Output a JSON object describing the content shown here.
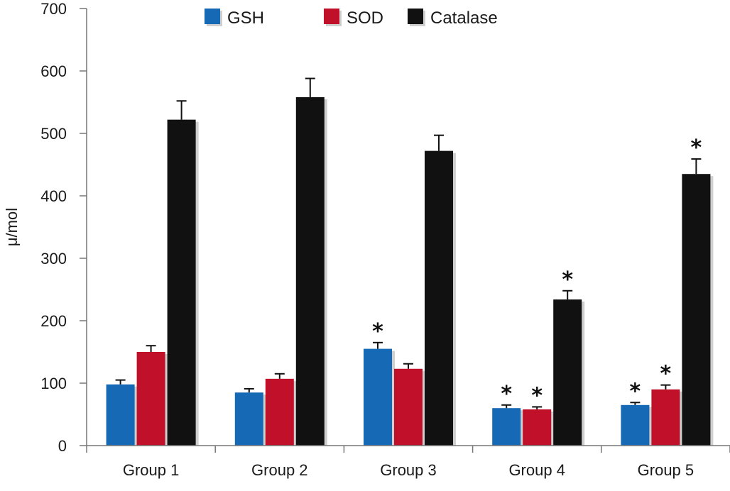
{
  "chart_data": {
    "type": "bar",
    "ylabel": "μ/mol",
    "ylim": [
      0,
      700
    ],
    "yticks": [
      0,
      100,
      200,
      300,
      400,
      500,
      600,
      700
    ],
    "categories": [
      "Group 1",
      "Group 2",
      "Group 3",
      "Group 4",
      "Group 5"
    ],
    "legend_position": "top",
    "series": [
      {
        "name": "GSH",
        "color": "#1569b5",
        "values": [
          98,
          85,
          155,
          60,
          65
        ],
        "errors": [
          7,
          6,
          10,
          5,
          4
        ],
        "significant": [
          false,
          false,
          true,
          true,
          true
        ]
      },
      {
        "name": "SOD",
        "color": "#c0102a",
        "values": [
          150,
          107,
          123,
          58,
          90
        ],
        "errors": [
          10,
          8,
          8,
          4,
          7
        ],
        "significant": [
          false,
          false,
          false,
          true,
          true
        ]
      },
      {
        "name": "Catalase",
        "color": "#111111",
        "values": [
          522,
          558,
          472,
          234,
          435
        ],
        "errors": [
          30,
          30,
          25,
          14,
          24
        ],
        "significant": [
          false,
          false,
          false,
          true,
          true
        ]
      }
    ],
    "significance_marker": "*"
  }
}
